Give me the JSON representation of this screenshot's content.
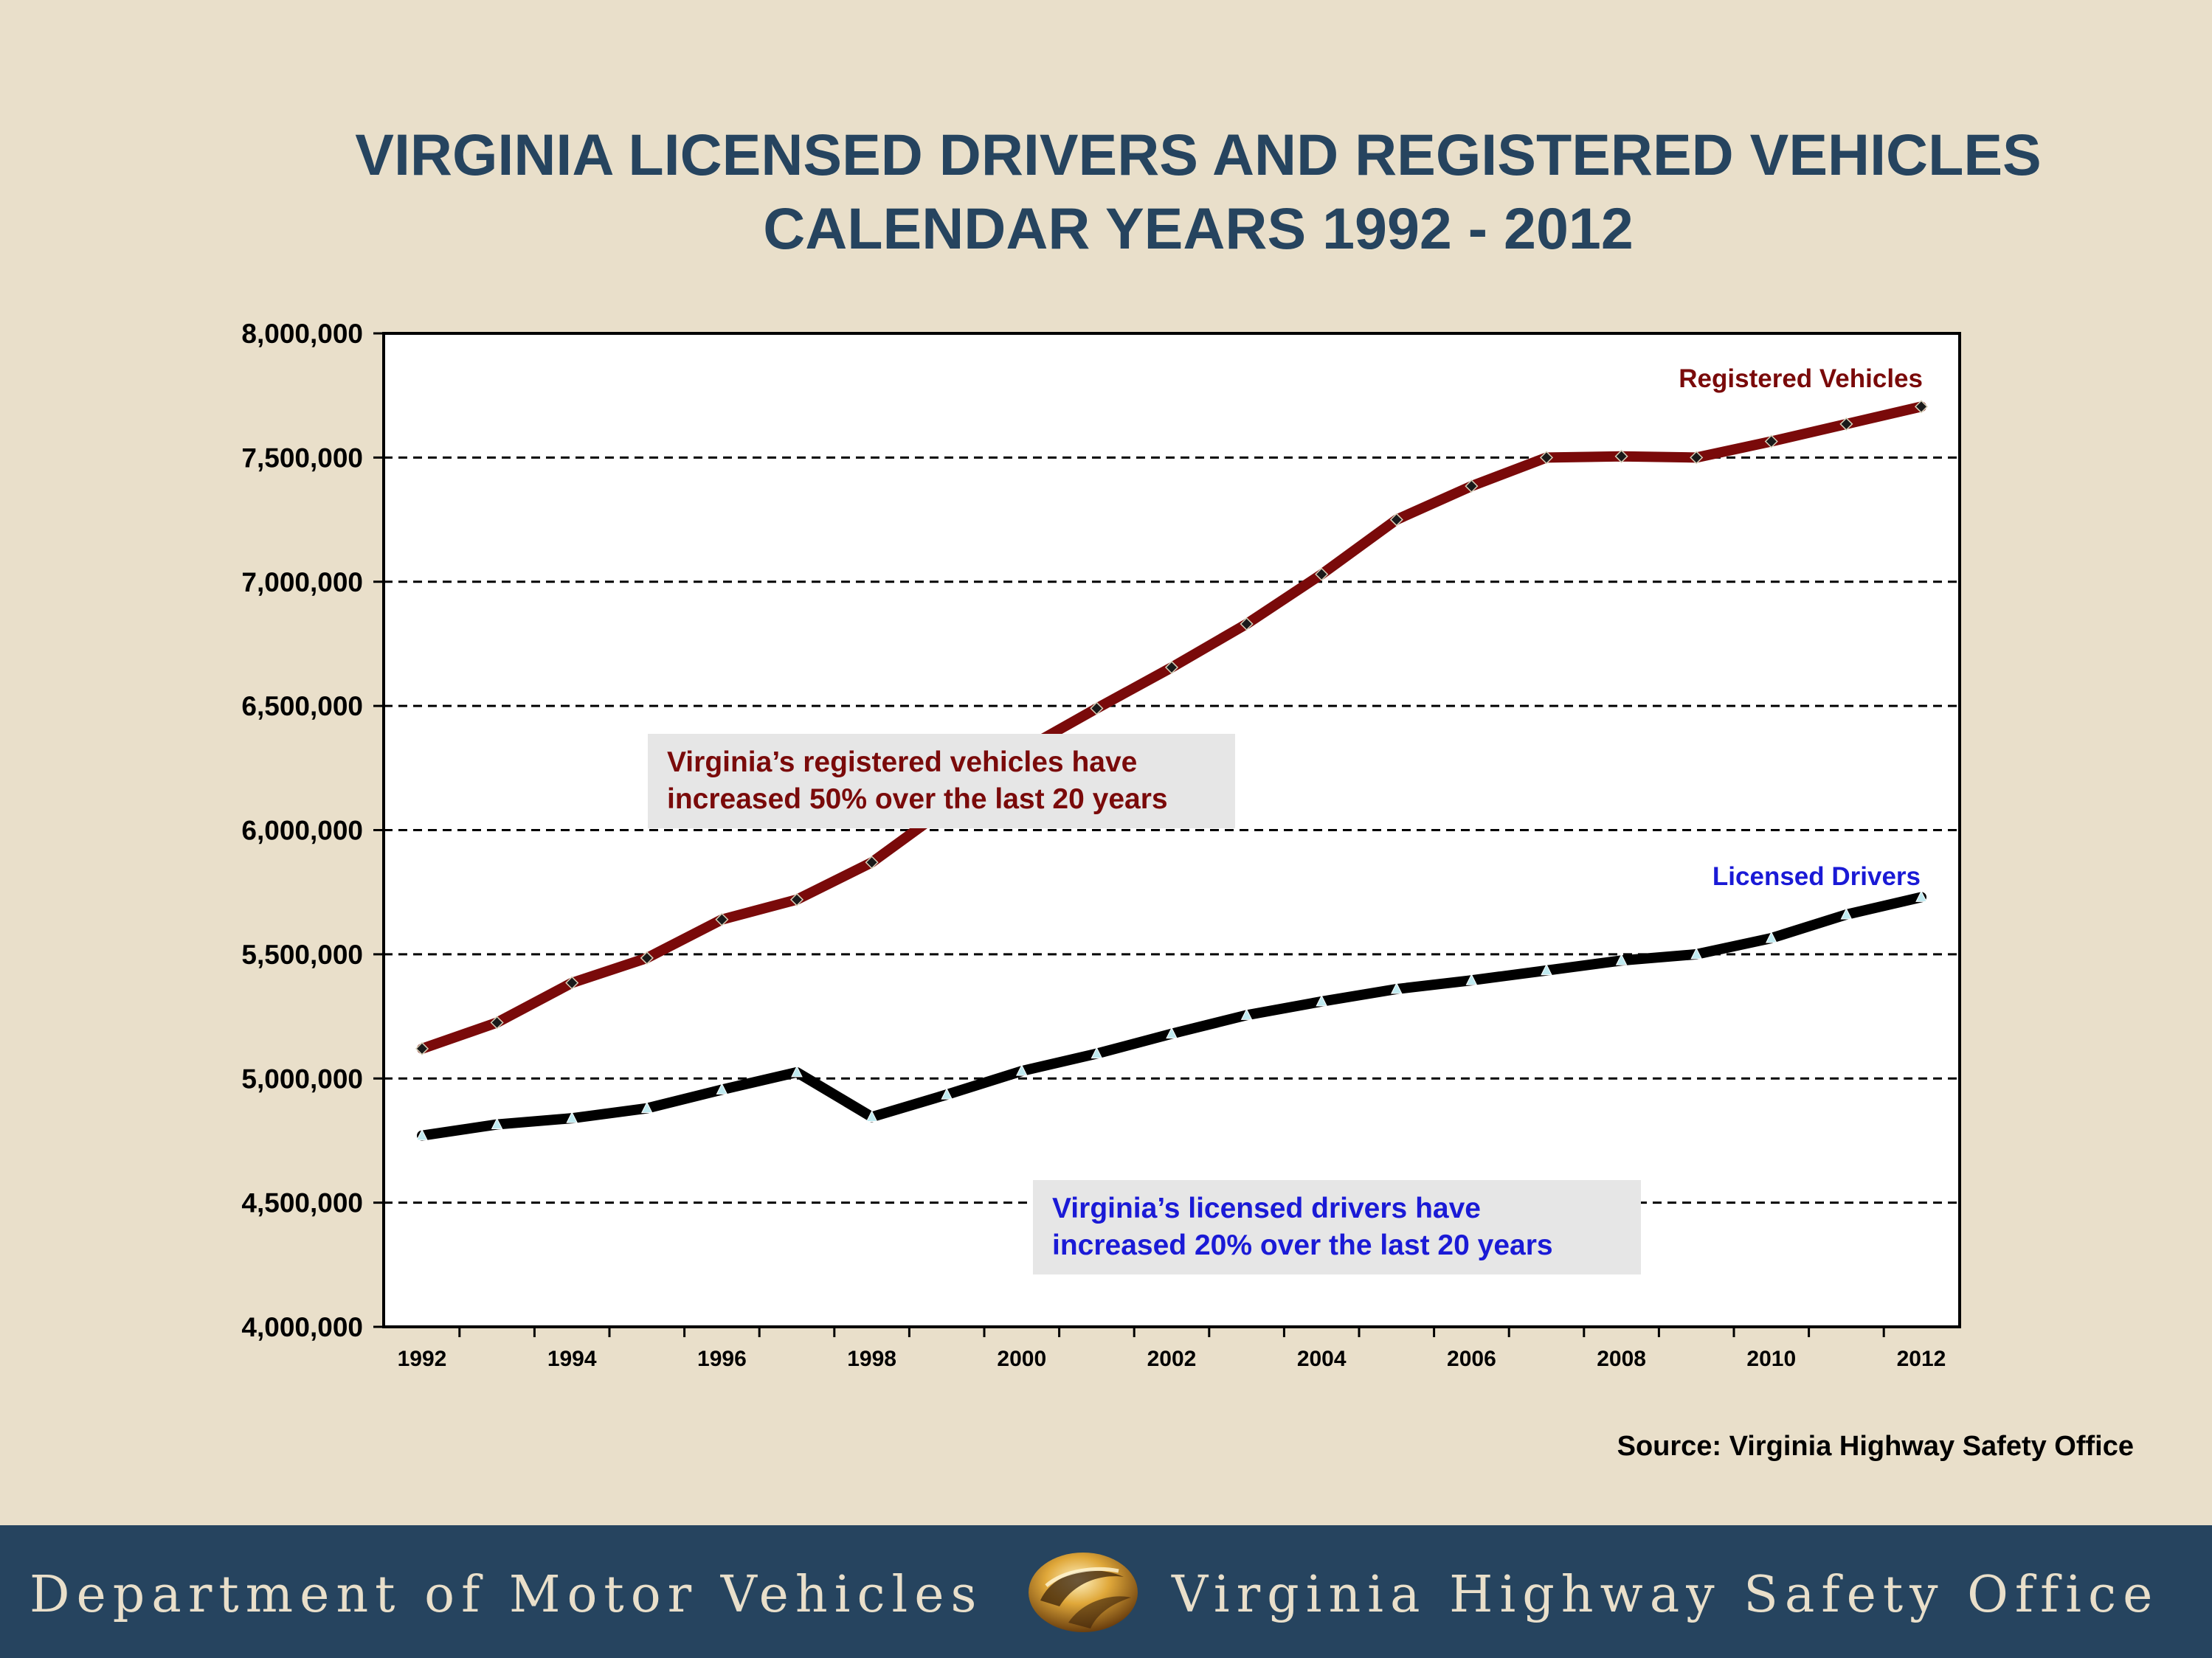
{
  "title": {
    "line1": "VIRGINIA LICENSED DRIVERS AND REGISTERED VEHICLES",
    "line2": "CALENDAR YEARS 1992 - 2012"
  },
  "annotations": {
    "vehicles_note_line1": "Virginia’s registered vehicles have",
    "vehicles_note_line2": "increased 50% over the last 20 years",
    "drivers_note_line1": "Virginia’s licensed drivers have",
    "drivers_note_line2": "increased 20% over the last 20 years"
  },
  "source": "Source: Virginia Highway Safety Office",
  "footer": {
    "left_text": "Department of Motor Vehicles",
    "right_text": "Virginia Highway Safety Office"
  },
  "colors": {
    "background": "#e9dfca",
    "title": "#26445f",
    "vehicles_series": "#7a0a0a",
    "drivers_series": "#000000",
    "drivers_label": "#1a1ad6",
    "footer_bar": "#26445f"
  },
  "chart_data": {
    "type": "line",
    "title": "VIRGINIA LICENSED DRIVERS AND REGISTERED VEHICLES CALENDAR YEARS 1992 - 2012",
    "xlabel": "",
    "ylabel": "",
    "x": [
      1992,
      1993,
      1994,
      1995,
      1996,
      1997,
      1998,
      1999,
      2000,
      2001,
      2002,
      2003,
      2004,
      2005,
      2006,
      2007,
      2008,
      2009,
      2010,
      2011,
      2012
    ],
    "x_tick_labels": [
      "1992",
      "1994",
      "1996",
      "1998",
      "2000",
      "2002",
      "2004",
      "2006",
      "2008",
      "2010",
      "2012"
    ],
    "ylim": [
      4000000,
      8000000
    ],
    "y_tick_labels": [
      "4,000,000",
      "4,500,000",
      "5,000,000",
      "5,500,000",
      "6,000,000",
      "6,500,000",
      "7,000,000",
      "7,500,000",
      "8,000,000"
    ],
    "grid": "horizontal dashed",
    "series": [
      {
        "name": "Registered Vehicles",
        "marker": "diamond",
        "values": [
          5120000,
          5225000,
          5385000,
          5485000,
          5640000,
          5720000,
          5870000,
          6090000,
          6320000,
          6490000,
          6655000,
          6830000,
          7030000,
          7250000,
          7385000,
          7500000,
          7505000,
          7500000,
          7565000,
          7635000,
          7705000
        ]
      },
      {
        "name": "Licensed Drivers",
        "marker": "triangle",
        "values": [
          4770000,
          4815000,
          4840000,
          4880000,
          4955000,
          5025000,
          4845000,
          4935000,
          5030000,
          5100000,
          5180000,
          5255000,
          5310000,
          5360000,
          5395000,
          5435000,
          5475000,
          5500000,
          5565000,
          5660000,
          5730000
        ]
      }
    ]
  }
}
